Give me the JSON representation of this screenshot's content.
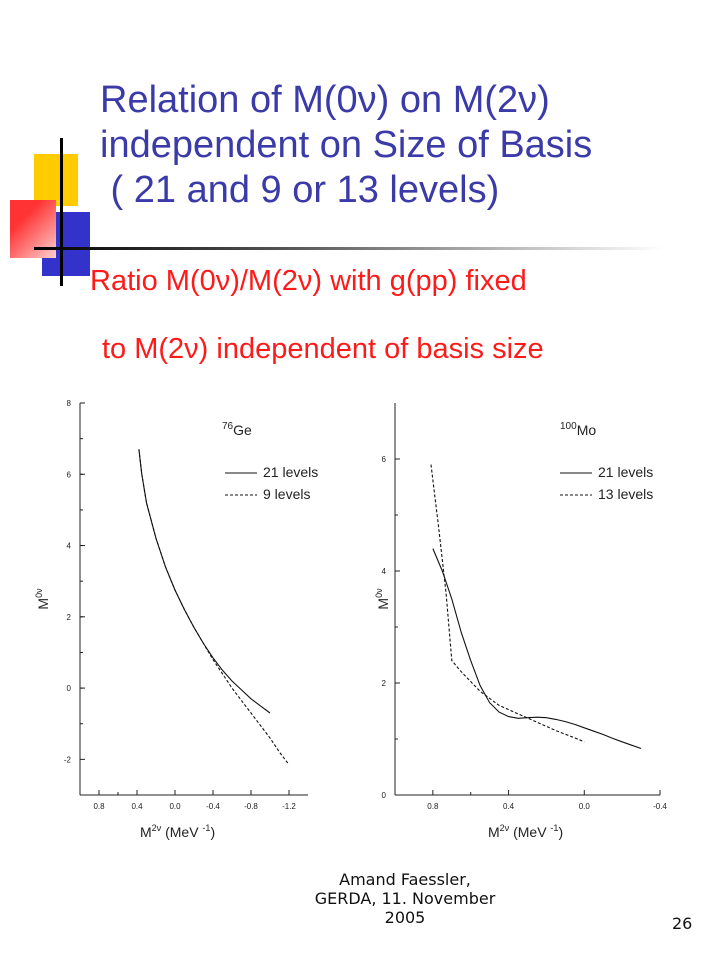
{
  "slide": {
    "title_lines": [
      "Relation of M(0ν) on M(2ν)",
      "independent on Size of Basis",
      " ( 21 and 9 or 13 levels)"
    ],
    "subtitle_line1": "Ratio M(0ν)/M(2ν) with g(pp) fixed",
    "subtitle_line2": "to M(2ν) independent of basis size",
    "footer_lines": [
      "Amand Faessler,",
      "GERDA, 11. November",
      "2005"
    ],
    "page_number": "26",
    "colors": {
      "title": "#3a3aa8",
      "subtitle": "#ff1a1a",
      "deco_yellow": "#ffcc00",
      "deco_blue": "#3333cc",
      "deco_red": "#ff3333"
    }
  },
  "chart_data": [
    {
      "type": "line",
      "nucleus_mass": "76",
      "nucleus_symbol": "Ge",
      "xlabel_base": "M",
      "xlabel_sup": "2ν",
      "xlabel_unit": " (MeV ",
      "xlabel_unit_sup": "-1",
      "xlabel_close": ")",
      "ylabel_base": "M",
      "ylabel_sup": "0ν",
      "xlim": [
        1.0,
        -1.4
      ],
      "ylim": [
        -3,
        8
      ],
      "xticks": [
        0.8,
        0.4,
        0.0,
        -0.4,
        -0.8,
        -1.2
      ],
      "xtick_labels": [
        "0.8",
        "0.4",
        "0.0",
        "-0.4",
        "-0.8",
        "-1.2"
      ],
      "yticks": [
        -2,
        0,
        2,
        4,
        6,
        8
      ],
      "ytick_labels": [
        "-2",
        "0",
        "2",
        "4",
        "6",
        "8"
      ],
      "series": [
        {
          "name": "21 levels",
          "dash": "solid",
          "x": [
            0.38,
            0.35,
            0.3,
            0.2,
            0.1,
            0.0,
            -0.1,
            -0.2,
            -0.3,
            -0.4,
            -0.5,
            -0.6,
            -0.7,
            -0.8,
            -0.9,
            -1.0
          ],
          "y": [
            6.7,
            6.0,
            5.2,
            4.2,
            3.4,
            2.75,
            2.2,
            1.7,
            1.25,
            0.85,
            0.5,
            0.2,
            -0.05,
            -0.3,
            -0.5,
            -0.7
          ]
        },
        {
          "name": "9 levels",
          "dash": "dashed",
          "x": [
            0.38,
            0.35,
            0.3,
            0.2,
            0.1,
            0.0,
            -0.1,
            -0.2,
            -0.3,
            -0.4,
            -0.5,
            -0.6,
            -0.7,
            -0.8,
            -0.9,
            -1.0,
            -1.1,
            -1.2
          ],
          "y": [
            6.7,
            6.0,
            5.2,
            4.2,
            3.4,
            2.75,
            2.2,
            1.7,
            1.25,
            0.8,
            0.4,
            0.0,
            -0.35,
            -0.7,
            -1.05,
            -1.4,
            -1.8,
            -2.15
          ]
        }
      ]
    },
    {
      "type": "line",
      "nucleus_mass": "100",
      "nucleus_symbol": "Mo",
      "xlabel_base": "M",
      "xlabel_sup": "2ν",
      "xlabel_unit": " (MeV ",
      "xlabel_unit_sup": "-1",
      "xlabel_close": ")",
      "ylabel_base": "M",
      "ylabel_sup": "0ν",
      "xlim": [
        1.0,
        -0.4
      ],
      "ylim": [
        0,
        7
      ],
      "xticks": [
        0.8,
        0.4,
        0.0,
        -0.4
      ],
      "xtick_labels": [
        "0.8",
        "0.4",
        "0.0",
        "-0.4"
      ],
      "yticks": [
        0,
        2,
        4,
        6
      ],
      "ytick_labels": [
        "0",
        "2",
        "4",
        "6"
      ],
      "series": [
        {
          "name": "21 levels",
          "dash": "solid",
          "x": [
            0.8,
            0.75,
            0.7,
            0.65,
            0.6,
            0.55,
            0.5,
            0.45,
            0.4,
            0.35,
            0.3,
            0.25,
            0.2,
            0.15,
            0.1,
            0.05,
            0.0,
            -0.05,
            -0.1,
            -0.15,
            -0.2,
            -0.25,
            -0.3
          ],
          "y": [
            4.4,
            4.0,
            3.5,
            2.9,
            2.4,
            1.95,
            1.65,
            1.48,
            1.4,
            1.37,
            1.38,
            1.39,
            1.38,
            1.35,
            1.31,
            1.26,
            1.2,
            1.14,
            1.08,
            1.01,
            0.95,
            0.89,
            0.83
          ]
        },
        {
          "name": "13 levels",
          "dash": "dashed",
          "x": [
            0.81,
            0.77,
            0.73,
            0.7,
            0.65,
            0.55,
            0.45,
            0.35,
            0.25,
            0.15,
            0.05,
            0.0
          ],
          "y": [
            5.9,
            4.8,
            3.6,
            2.4,
            2.2,
            1.85,
            1.6,
            1.45,
            1.3,
            1.15,
            1.02,
            0.95
          ]
        }
      ]
    }
  ]
}
